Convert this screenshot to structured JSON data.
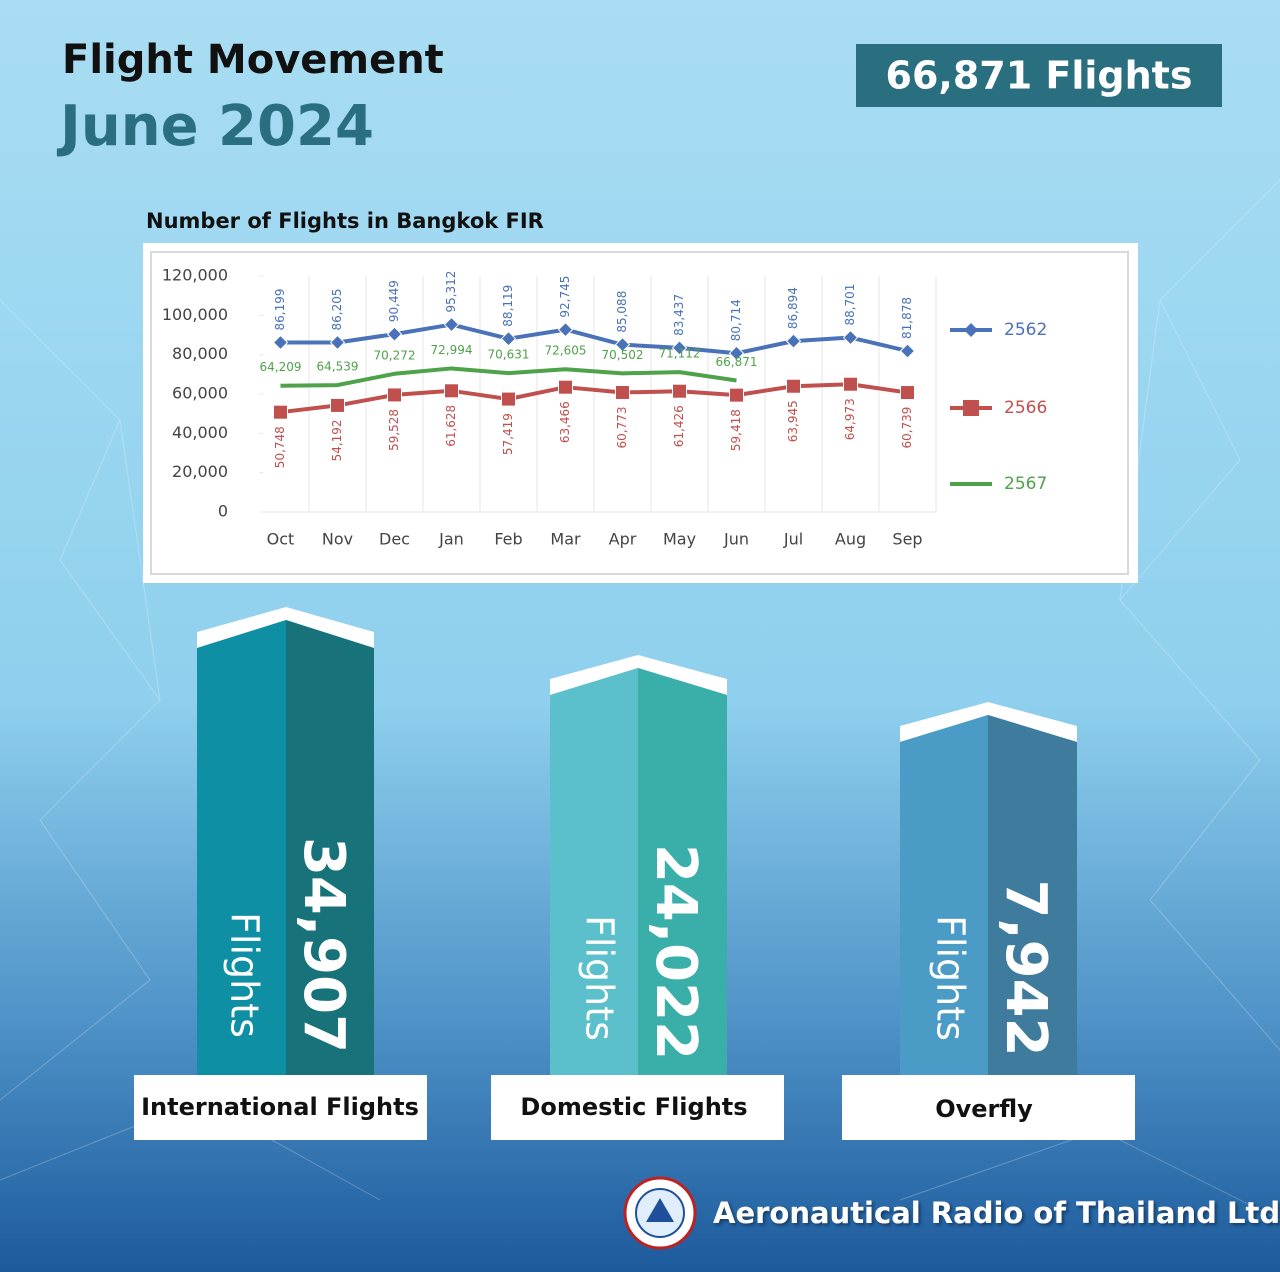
{
  "header": {
    "title": "Flight Movement",
    "period": "June 2024",
    "total": "66,871 Flights"
  },
  "chart_data": {
    "type": "line",
    "title": "Number of Flights in Bangkok FIR",
    "categories": [
      "Oct",
      "Nov",
      "Dec",
      "Jan",
      "Feb",
      "Mar",
      "Apr",
      "May",
      "Jun",
      "Jul",
      "Aug",
      "Sep"
    ],
    "series": [
      {
        "name": "2562",
        "color": "#4a72b8",
        "marker": "diamond",
        "values": [
          86199,
          86205,
          90449,
          95312,
          88119,
          92745,
          85088,
          83437,
          80714,
          86894,
          88701,
          81878
        ],
        "value_labels": [
          "86,199",
          "86,205",
          "90,449",
          "95,312",
          "88,119",
          "92,745",
          "85,088",
          "83,437",
          "80,714",
          "86,894",
          "88,701",
          "81,878"
        ]
      },
      {
        "name": "2566",
        "color": "#c0504d",
        "marker": "square",
        "values": [
          50748,
          54192,
          59528,
          61628,
          57419,
          63466,
          60773,
          61426,
          59418,
          63945,
          64973,
          60739
        ],
        "value_labels": [
          "50,748",
          "54,192",
          "59,528",
          "61,628",
          "57,419",
          "63,466",
          "60,773",
          "61,426",
          "59,418",
          "63,945",
          "64,973",
          "60,739"
        ]
      },
      {
        "name": "2567",
        "color": "#4ea24a",
        "marker": "none",
        "values": [
          64209,
          64539,
          70272,
          72994,
          70631,
          72605,
          70502,
          71112,
          66871,
          null,
          null,
          null
        ],
        "value_labels": [
          "64,209",
          "64,539",
          "70,272",
          "72,994",
          "70,631",
          "72,605",
          "70,502",
          "71,112",
          "66,871",
          null,
          null,
          null
        ]
      }
    ],
    "ylim": [
      0,
      120000
    ],
    "yticks": [
      0,
      {
        "value": 20000,
        "label": "20,000"
      },
      {
        "value": 40000,
        "label": "40,000"
      },
      {
        "value": 60000,
        "label": "60,000"
      },
      {
        "value": 80000,
        "label": "80,000"
      },
      {
        "value": 100000,
        "label": "100,000"
      },
      {
        "value": 120000,
        "label": "120,000"
      }
    ],
    "legend": "right"
  },
  "breakdown": [
    {
      "value": "34,907",
      "unit": "Flights",
      "label": "International Flights"
    },
    {
      "value": "24,022",
      "unit": "Flights",
      "label": "Domestic Flights"
    },
    {
      "value": "7,942",
      "unit": "Flights",
      "label": "Overfly"
    }
  ],
  "footer": {
    "organization": "Aeronautical Radio of Thailand Ltd."
  }
}
